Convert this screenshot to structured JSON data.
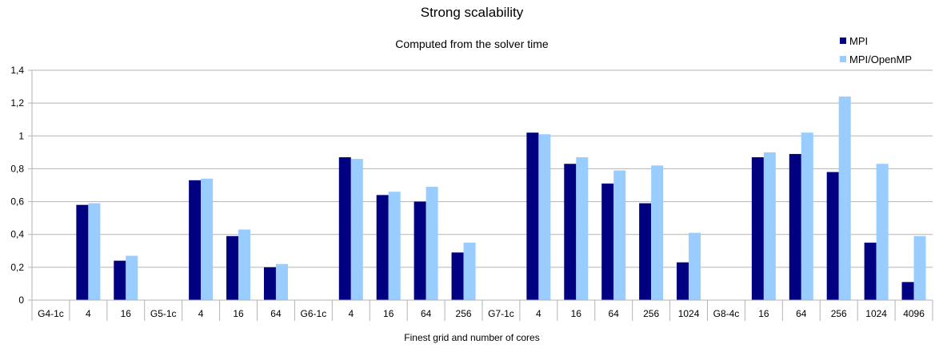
{
  "chart_data": {
    "type": "bar",
    "title": "Strong scalability",
    "subtitle": "Computed from the solver time",
    "xlabel": "Finest grid and number of cores",
    "ylabel": "",
    "ylim": [
      0,
      1.4
    ],
    "yticks": [
      "0",
      "0,2",
      "0,4",
      "0,6",
      "0,8",
      "1",
      "1,2",
      "1,4"
    ],
    "grid": true,
    "legend_position": "top-right",
    "categories": [
      "G4-1c",
      "4",
      "16",
      "G5-1c",
      "4",
      "16",
      "64",
      "G6-1c",
      "4",
      "16",
      "64",
      "256",
      "G7-1c",
      "4",
      "16",
      "64",
      "256",
      "1024",
      "G8-4c",
      "16",
      "64",
      "256",
      "1024",
      "4096"
    ],
    "series": [
      {
        "name": "MPI",
        "color": "#000080",
        "values": [
          null,
          0.58,
          0.24,
          null,
          0.73,
          0.39,
          0.2,
          null,
          0.87,
          0.64,
          0.6,
          0.29,
          null,
          1.02,
          0.83,
          0.71,
          0.59,
          0.23,
          null,
          0.87,
          0.89,
          0.78,
          0.35,
          0.11
        ]
      },
      {
        "name": "MPI/OpenMP",
        "color": "#99ccff",
        "values": [
          null,
          0.59,
          0.27,
          null,
          0.74,
          0.43,
          0.22,
          null,
          0.86,
          0.66,
          0.69,
          0.35,
          null,
          1.01,
          0.87,
          0.79,
          0.82,
          0.41,
          null,
          0.9,
          1.02,
          1.24,
          0.83,
          0.39
        ]
      }
    ]
  }
}
